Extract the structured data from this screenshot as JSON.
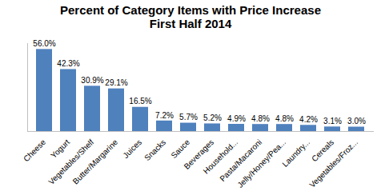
{
  "chart_data": {
    "type": "bar",
    "title": "Percent of Category Items with Price Increase",
    "subtitle": "First Half 2014",
    "categories": [
      "Cheese",
      "Yogurt",
      "Vegetables/Shelf",
      "Butter/Margarine",
      "Juices",
      "Snacks",
      "Sauce",
      "Beverages",
      "Household...",
      "Pasta/Macaroni",
      "Jelly/Honey/Pea...",
      "Laundry...",
      "Cereals",
      "Vegetables/Froz..."
    ],
    "values": [
      56.0,
      42.3,
      30.9,
      29.1,
      16.5,
      7.2,
      5.7,
      5.2,
      4.9,
      4.8,
      4.8,
      4.2,
      3.1,
      3.0
    ],
    "value_labels": [
      "56.0%",
      "42.3%",
      "30.9%",
      "29.1%",
      "16.5%",
      "7.2%",
      "5.7%",
      "5.2%",
      "4.9%",
      "4.8%",
      "4.8%",
      "4.2%",
      "3.1%",
      "3.0%"
    ],
    "color": "#4f81bd",
    "ylim": [
      0,
      60
    ],
    "yticks": [],
    "grid": false,
    "data_labels": true,
    "tick_labels": "x"
  }
}
